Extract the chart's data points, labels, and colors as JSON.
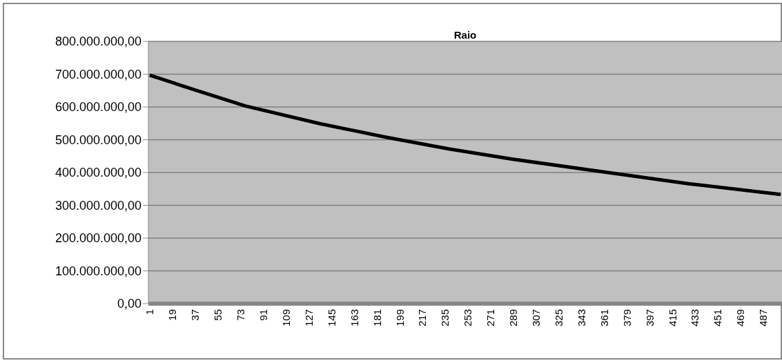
{
  "chart_data": {
    "type": "line",
    "title": "Raio",
    "x": [
      1,
      40,
      77,
      136,
      188,
      238,
      288,
      368,
      428,
      501
    ],
    "series": [
      {
        "color": "#000000",
        "values": [
          697000000,
          648000000,
          603000000,
          549000000,
          508000000,
          472000000,
          441000000,
          398000000,
          366000000,
          333000000
        ]
      }
    ],
    "xlim": [
      0,
      502
    ],
    "xticks": [
      1,
      19,
      37,
      55,
      73,
      91,
      109,
      127,
      145,
      163,
      181,
      199,
      217,
      235,
      253,
      271,
      289,
      307,
      325,
      343,
      361,
      379,
      397,
      415,
      433,
      451,
      469,
      487
    ],
    "ylim": [
      0,
      800000000
    ],
    "yticks": [
      {
        "value": 0,
        "label": "0,00"
      },
      {
        "value": 100000000,
        "label": "100.000.000,00"
      },
      {
        "value": 200000000,
        "label": "200.000.000,00"
      },
      {
        "value": 300000000,
        "label": "300.000.000,00"
      },
      {
        "value": 400000000,
        "label": "400.000.000,00"
      },
      {
        "value": 500000000,
        "label": "500.000.000,00"
      },
      {
        "value": 600000000,
        "label": "600.000.000,00"
      },
      {
        "value": 700000000,
        "label": "700.000.000,00"
      },
      {
        "value": 800000000,
        "label": "800.000.000,00"
      }
    ],
    "grid": "y",
    "legend": false,
    "marker": "none",
    "line_style": "solid"
  }
}
